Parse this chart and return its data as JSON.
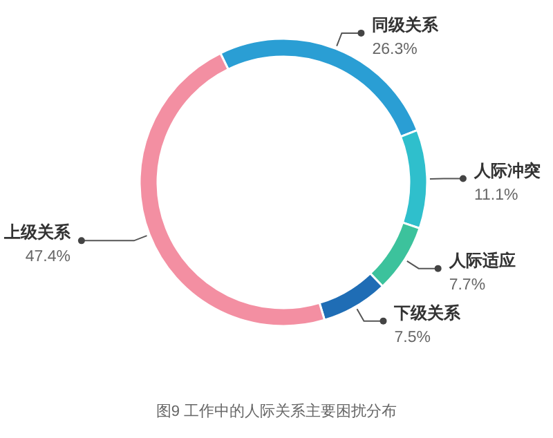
{
  "chart_data": {
    "type": "donut",
    "title": "图9 工作中的人际关系主要困扰分布",
    "categories": [
      "同级关系",
      "人际冲突",
      "人际适应",
      "下级关系",
      "上级关系"
    ],
    "values": [
      26.3,
      11.1,
      7.7,
      7.5,
      47.4
    ],
    "value_labels": [
      "26.3%",
      "11.1%",
      "7.7%",
      "7.5%",
      "47.4%"
    ],
    "colors": [
      "#2a9ed4",
      "#2fbfcc",
      "#3cc29c",
      "#1f6db5",
      "#f38fa2"
    ]
  }
}
